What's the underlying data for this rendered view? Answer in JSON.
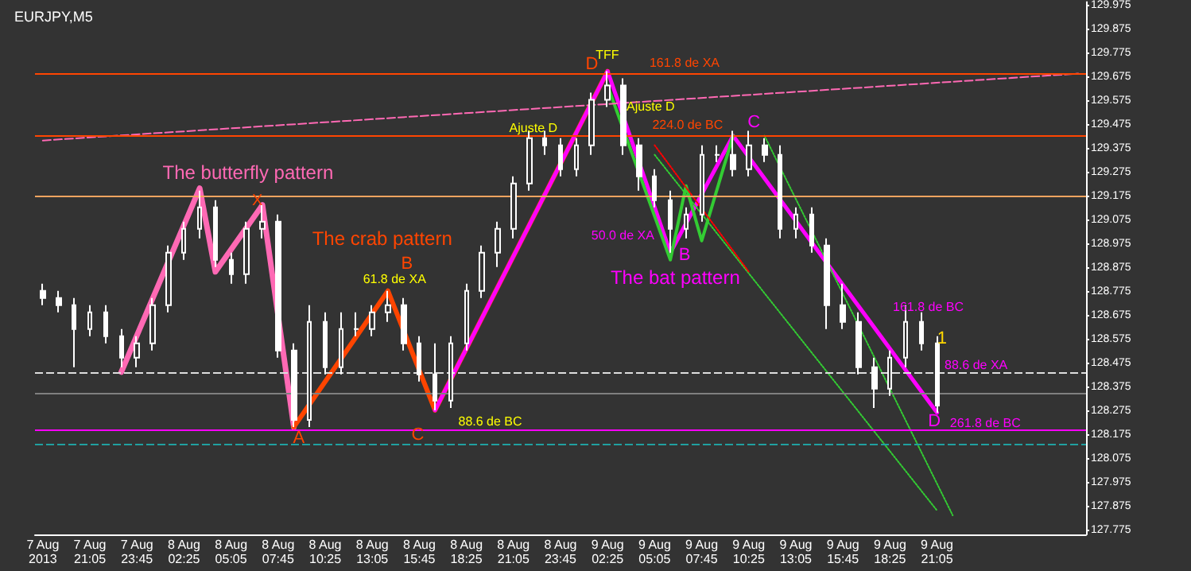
{
  "chart_data": {
    "type": "candlestick",
    "title": "EURJPY,M5",
    "color": "#ffffff",
    "categories": [
      "7 Aug 2013",
      null,
      null,
      "7 Aug 21:05",
      null,
      null,
      "7 Aug 23:45",
      null,
      null,
      "8 Aug 02:25",
      null,
      null,
      "8 Aug 05:05",
      null,
      null,
      "8 Aug 07:45",
      null,
      null,
      "8 Aug 10:25",
      null,
      null,
      "8 Aug 13:05",
      null,
      null,
      "8 Aug 15:45",
      null,
      null,
      "8 Aug 18:25",
      null,
      null,
      "8 Aug 21:05",
      null,
      null,
      "8 Aug 23:45",
      null,
      null,
      "9 Aug 02:25",
      null,
      null,
      "9 Aug 05:05",
      null,
      null,
      "9 Aug 07:45",
      null,
      null,
      "9 Aug 10:25",
      null,
      null,
      "9 Aug 13:05",
      null,
      null,
      "9 Aug 15:45",
      null,
      null,
      "9 Aug 18:25",
      null,
      null,
      "9 Aug 21:05",
      null,
      null,
      null,
      null,
      null,
      null,
      null,
      null,
      null
    ],
    "ohlc": [
      [
        128.78,
        128.81,
        128.72,
        128.75
      ],
      [
        128.75,
        128.78,
        128.69,
        128.72
      ],
      [
        128.72,
        128.75,
        128.46,
        128.62
      ],
      [
        128.62,
        128.72,
        128.59,
        128.69
      ],
      [
        128.69,
        128.72,
        128.56,
        128.59
      ],
      [
        128.59,
        128.62,
        128.46,
        128.5
      ],
      [
        128.5,
        128.59,
        128.46,
        128.56
      ],
      [
        128.56,
        128.75,
        128.53,
        128.72
      ],
      [
        128.72,
        128.97,
        128.69,
        128.94
      ],
      [
        128.94,
        129.07,
        128.91,
        129.04
      ],
      [
        129.04,
        129.2,
        129.0,
        129.13
      ],
      [
        129.13,
        129.16,
        128.88,
        128.91
      ],
      [
        128.91,
        128.94,
        128.81,
        128.85
      ],
      [
        128.85,
        129.07,
        128.81,
        129.04
      ],
      [
        129.04,
        129.14,
        129.0,
        129.07
      ],
      [
        129.07,
        129.1,
        128.5,
        128.53
      ],
      [
        128.53,
        128.56,
        128.21,
        128.24
      ],
      [
        128.24,
        128.72,
        128.21,
        128.65
      ],
      [
        128.65,
        128.69,
        128.43,
        128.46
      ],
      [
        128.46,
        128.69,
        128.43,
        128.62
      ],
      [
        128.62,
        128.69,
        128.59,
        128.62
      ],
      [
        128.62,
        128.72,
        128.59,
        128.69
      ],
      [
        128.69,
        128.78,
        128.65,
        128.72
      ],
      [
        128.72,
        128.75,
        128.53,
        128.56
      ],
      [
        128.56,
        128.59,
        128.4,
        128.43
      ],
      [
        128.43,
        128.56,
        128.28,
        128.32
      ],
      [
        128.32,
        128.59,
        128.29,
        128.56
      ],
      [
        128.56,
        128.81,
        128.53,
        128.78
      ],
      [
        128.78,
        128.97,
        128.75,
        128.94
      ],
      [
        128.94,
        129.07,
        128.88,
        129.04
      ],
      [
        129.04,
        129.26,
        129.0,
        129.23
      ],
      [
        129.23,
        129.45,
        129.2,
        129.42
      ],
      [
        129.42,
        129.45,
        129.35,
        129.39
      ],
      [
        129.39,
        129.42,
        129.26,
        129.29
      ],
      [
        129.29,
        129.42,
        129.26,
        129.39
      ],
      [
        129.39,
        129.61,
        129.35,
        129.58
      ],
      [
        129.58,
        129.7,
        129.55,
        129.64
      ],
      [
        129.64,
        129.67,
        129.35,
        129.39
      ],
      [
        129.39,
        129.42,
        129.2,
        129.26
      ],
      [
        129.26,
        129.29,
        129.13,
        129.16
      ],
      [
        129.16,
        129.2,
        128.94,
        129.04
      ],
      [
        129.04,
        129.13,
        129.0,
        129.1
      ],
      [
        129.1,
        129.39,
        129.07,
        129.35
      ],
      [
        129.35,
        129.39,
        129.32,
        129.35
      ],
      [
        129.35,
        129.45,
        129.26,
        129.29
      ],
      [
        129.29,
        129.45,
        129.26,
        129.39
      ],
      [
        129.39,
        129.42,
        129.32,
        129.35
      ],
      [
        129.35,
        129.39,
        129.0,
        129.04
      ],
      [
        129.04,
        129.13,
        129.0,
        129.1
      ],
      [
        129.1,
        129.13,
        128.94,
        128.97
      ],
      [
        128.97,
        129.0,
        128.62,
        128.72
      ],
      [
        128.72,
        128.81,
        128.62,
        128.65
      ],
      [
        128.65,
        128.69,
        128.43,
        128.46
      ],
      [
        128.46,
        128.5,
        128.29,
        128.37
      ],
      [
        128.37,
        128.53,
        128.34,
        128.5
      ],
      [
        128.5,
        128.72,
        128.46,
        128.65
      ],
      [
        128.65,
        128.69,
        128.53,
        128.56
      ],
      [
        128.56,
        128.59,
        128.27,
        128.3
      ],
      null,
      null,
      null,
      null,
      null,
      null,
      null,
      null,
      null
    ],
    "series": [
      {
        "type": "line",
        "color": "#ff69b4",
        "line_style": "solid",
        "values": [
          null,
          null,
          null,
          null,
          null,
          128.44,
          null,
          null,
          null,
          null,
          129.21,
          128.86,
          null,
          null,
          129.14,
          null,
          128.21,
          null,
          null,
          null,
          null,
          null,
          null,
          null,
          null,
          null,
          null,
          null,
          null,
          null,
          null,
          null,
          null,
          null,
          null,
          null,
          null,
          null,
          null,
          null,
          null,
          null,
          null,
          null,
          null,
          null,
          null,
          null,
          null,
          null,
          null,
          null,
          null,
          null,
          null,
          null,
          null,
          null,
          null,
          null,
          null,
          null,
          null,
          null,
          null,
          null,
          null
        ]
      },
      {
        "type": "line",
        "color": "#ff4500",
        "line_style": "solid",
        "values": [
          null,
          null,
          null,
          null,
          null,
          null,
          null,
          null,
          null,
          null,
          null,
          null,
          null,
          null,
          null,
          null,
          128.21,
          null,
          null,
          null,
          null,
          null,
          128.78,
          null,
          null,
          128.28,
          null,
          null,
          null,
          null,
          null,
          null,
          null,
          null,
          null,
          null,
          129.7,
          null,
          null,
          null,
          null,
          null,
          null,
          null,
          null,
          null,
          null,
          null,
          null,
          null,
          null,
          null,
          null,
          null,
          null,
          null,
          null,
          null,
          null,
          null,
          null,
          null,
          null,
          null,
          null,
          null,
          null
        ]
      },
      {
        "type": "line",
        "color": "#ff00ff",
        "line_style": "solid",
        "values": [
          null,
          null,
          null,
          null,
          null,
          null,
          null,
          null,
          null,
          null,
          null,
          null,
          null,
          null,
          null,
          null,
          null,
          null,
          null,
          null,
          null,
          null,
          null,
          null,
          null,
          128.28,
          null,
          null,
          null,
          null,
          null,
          null,
          null,
          null,
          null,
          null,
          129.7,
          null,
          null,
          null,
          128.94,
          null,
          null,
          null,
          129.43,
          null,
          null,
          null,
          null,
          null,
          null,
          null,
          null,
          null,
          null,
          null,
          null,
          128.27,
          null,
          null,
          null,
          null,
          null,
          null,
          null,
          null,
          null
        ]
      },
      {
        "type": "line",
        "color": "#33cc33",
        "line_style": "solid",
        "values": [
          null,
          null,
          null,
          null,
          null,
          null,
          null,
          null,
          null,
          null,
          null,
          null,
          null,
          null,
          null,
          null,
          null,
          null,
          null,
          null,
          null,
          null,
          null,
          null,
          null,
          null,
          null,
          null,
          null,
          null,
          null,
          null,
          null,
          null,
          null,
          null,
          129.64,
          null,
          null,
          null,
          128.91,
          129.22,
          128.99,
          null,
          129.43,
          null,
          null,
          null,
          null,
          null,
          null,
          null,
          null,
          null,
          null,
          null,
          null,
          null,
          null,
          null,
          null,
          null,
          null,
          null,
          null,
          null,
          null
        ]
      },
      {
        "type": "line",
        "color": "#33cc33",
        "line_style": "dotted",
        "values": [
          null,
          null,
          null,
          null,
          null,
          null,
          null,
          null,
          null,
          null,
          null,
          null,
          null,
          null,
          null,
          null,
          null,
          null,
          null,
          null,
          null,
          null,
          null,
          null,
          null,
          null,
          null,
          null,
          null,
          null,
          null,
          null,
          null,
          null,
          null,
          null,
          null,
          null,
          null,
          null,
          null,
          null,
          null,
          null,
          null,
          null,
          129.43,
          null,
          null,
          null,
          null,
          null,
          null,
          null,
          null,
          null,
          null,
          null,
          127.84,
          null,
          null,
          null,
          null,
          null,
          null,
          null,
          null
        ]
      },
      {
        "type": "line",
        "color": "#33cc33",
        "line_style": "dotted",
        "values": [
          null,
          null,
          null,
          null,
          null,
          null,
          null,
          null,
          null,
          null,
          null,
          null,
          null,
          null,
          null,
          null,
          null,
          null,
          null,
          null,
          null,
          null,
          null,
          null,
          null,
          null,
          null,
          null,
          null,
          null,
          null,
          null,
          null,
          null,
          null,
          null,
          null,
          null,
          null,
          129.35,
          null,
          null,
          null,
          null,
          null,
          null,
          null,
          null,
          null,
          null,
          null,
          null,
          null,
          null,
          null,
          null,
          null,
          127.86,
          null,
          null,
          null,
          null,
          null,
          null,
          null,
          null,
          null
        ]
      },
      {
        "type": "line",
        "color": "#ff0000",
        "line_style": "dotted",
        "values": [
          null,
          null,
          null,
          null,
          null,
          null,
          null,
          null,
          null,
          null,
          null,
          null,
          null,
          null,
          null,
          null,
          null,
          null,
          null,
          null,
          null,
          null,
          null,
          null,
          null,
          null,
          null,
          null,
          null,
          null,
          null,
          null,
          null,
          null,
          null,
          null,
          null,
          null,
          null,
          129.39,
          null,
          null,
          null,
          null,
          null,
          128.86,
          null,
          null,
          null,
          null,
          null,
          null,
          null,
          null,
          null,
          null,
          null,
          null,
          null,
          null,
          null,
          null,
          null,
          null,
          null,
          null,
          null
        ]
      },
      {
        "type": "line",
        "color": "#ff69b4",
        "line_style": "dashed",
        "values": [
          129.41,
          null,
          null,
          null,
          null,
          null,
          null,
          null,
          null,
          null,
          null,
          null,
          null,
          null,
          null,
          null,
          null,
          null,
          null,
          null,
          null,
          null,
          null,
          null,
          null,
          null,
          null,
          null,
          null,
          null,
          null,
          null,
          null,
          null,
          null,
          null,
          null,
          null,
          null,
          null,
          null,
          null,
          null,
          null,
          null,
          null,
          null,
          null,
          null,
          null,
          null,
          null,
          null,
          null,
          null,
          null,
          null,
          null,
          null,
          null,
          null,
          null,
          null,
          null,
          null,
          null,
          129.69
        ]
      }
    ],
    "ylim": [
      127.76,
      129.99
    ],
    "yticks": [
      127.775,
      127.875,
      127.975,
      128.075,
      128.175,
      128.275,
      128.375,
      128.475,
      128.575,
      128.675,
      128.775,
      128.875,
      128.975,
      129.075,
      129.175,
      129.275,
      129.375,
      129.475,
      129.575,
      129.675,
      129.775,
      129.875,
      129.975
    ],
    "ref_lines": [
      {
        "axis": "y",
        "value": 129.69,
        "color": "#ff4500",
        "line_style": "solid"
      },
      {
        "axis": "y",
        "value": 129.43,
        "color": "#ff4500",
        "line_style": "solid"
      },
      {
        "axis": "y",
        "value": 129.18,
        "color": "#f4a460",
        "line_style": "solid"
      },
      {
        "axis": "y",
        "value": 128.44,
        "color": "#dddddd",
        "line_style": "dashed"
      },
      {
        "axis": "y",
        "value": 128.35,
        "color": "#808080",
        "line_style": "solid"
      },
      {
        "axis": "y",
        "value": 128.2,
        "color": "#ff00ff",
        "line_style": "solid"
      },
      {
        "axis": "y",
        "value": 128.14,
        "color": "#20a0a0",
        "line_style": "dashed"
      }
    ],
    "annotations": [
      "The butterfly pattern",
      "X",
      "The crab pattern",
      "A",
      "B",
      "C",
      "D",
      "61.8 de XA",
      "88.6 de BC",
      "TFF",
      "161.8 de XA",
      "Ajuste D",
      "Ajuste D",
      "224.0 de BC",
      "C",
      "50.0 de XA",
      "B",
      "The bat pattern",
      "161.8 de BC",
      "1",
      "88.6 de XA",
      "D",
      "261.8 de BC"
    ],
    "grid": false,
    "marker": "none"
  }
}
